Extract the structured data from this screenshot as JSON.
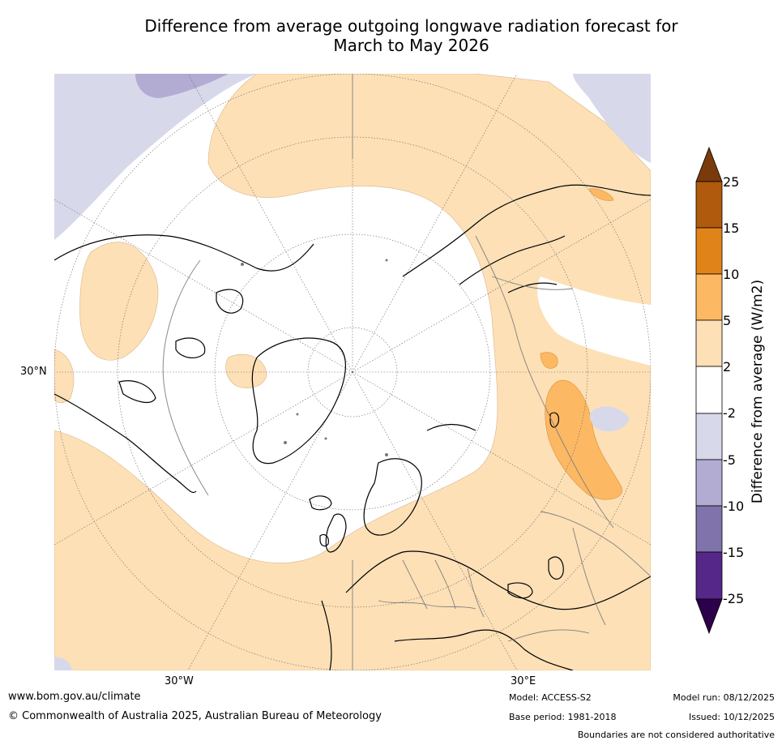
{
  "title_line1": "Difference from average outgoing longwave radiation forecast for",
  "title_line2": "March to May 2026",
  "graticule_labels": {
    "lat_30n": "30°N",
    "lon_30w": "30°W",
    "lon_30e": "30°E"
  },
  "legend": {
    "title": "Difference from average (W/m2)",
    "ticks": [
      "25",
      "15",
      "10",
      "5",
      "2",
      "-2",
      "-5",
      "-10",
      "-15",
      "-25"
    ],
    "colors": {
      "above_25": "#7a3a0c",
      "15_25": "#b05a0d",
      "10_15": "#e0841a",
      "5_10": "#fdb863",
      "2_5": "#fde0b6",
      "neutral": "#ffffff",
      "m2_m5": "#d8d8eb",
      "m5_m10": "#b2abd2",
      "m10_m15": "#8073ac",
      "m15_m25": "#542788",
      "below_m25": "#2d004b"
    }
  },
  "footer": {
    "website": "www.bom.gov.au/climate",
    "copyright": "© Commonwealth of Australia 2025, Australian Bureau of Meteorology",
    "model": "Model: ACCESS-S2",
    "base_period": "Base period: 1981-2018",
    "model_run": "Model run: 08/12/2025",
    "issued": "Issued: 10/12/2025",
    "disclaimer": "Boundaries are not considered authoritative"
  }
}
